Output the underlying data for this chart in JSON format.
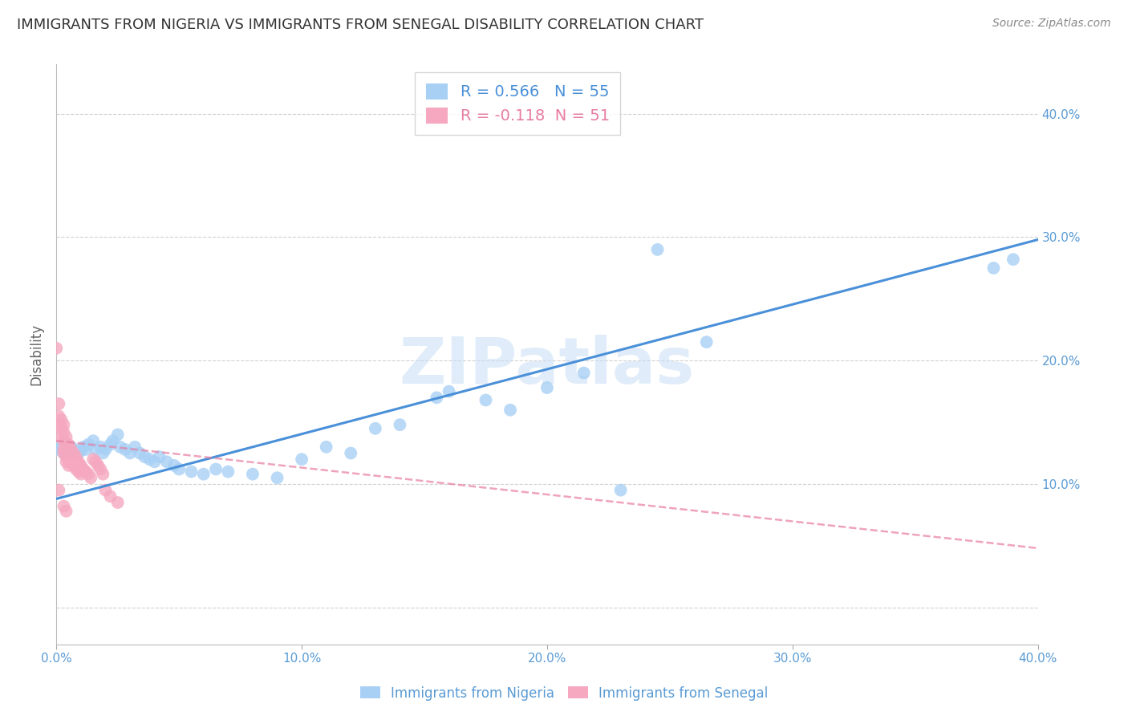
{
  "title": "IMMIGRANTS FROM NIGERIA VS IMMIGRANTS FROM SENEGAL DISABILITY CORRELATION CHART",
  "source": "Source: ZipAtlas.com",
  "ylabel": "Disability",
  "xlim": [
    0.0,
    0.4
  ],
  "ylim": [
    -0.03,
    0.44
  ],
  "yticks": [
    0.0,
    0.1,
    0.2,
    0.3,
    0.4
  ],
  "ytick_labels": [
    "",
    "10.0%",
    "20.0%",
    "30.0%",
    "40.0%"
  ],
  "xticks": [
    0.0,
    0.1,
    0.2,
    0.3,
    0.4
  ],
  "xtick_labels": [
    "0.0%",
    "10.0%",
    "20.0%",
    "30.0%",
    "40.0%"
  ],
  "nigeria_R": 0.566,
  "nigeria_N": 55,
  "senegal_R": -0.118,
  "senegal_N": 51,
  "nigeria_color": "#A8D0F5",
  "senegal_color": "#F5A8C0",
  "nigeria_line_color": "#4A90D9",
  "senegal_line_color": "#E87DA0",
  "watermark": "ZIPatlas",
  "background_color": "#ffffff",
  "title_fontsize": 13,
  "nigeria_line": [
    0.0,
    0.088,
    0.4,
    0.298
  ],
  "senegal_line": [
    0.0,
    0.135,
    0.4,
    0.048
  ],
  "nigeria_points": [
    [
      0.001,
      0.128
    ],
    [
      0.002,
      0.13
    ],
    [
      0.003,
      0.125
    ],
    [
      0.004,
      0.132
    ],
    [
      0.005,
      0.127
    ],
    [
      0.006,
      0.13
    ],
    [
      0.007,
      0.128
    ],
    [
      0.008,
      0.126
    ],
    [
      0.009,
      0.125
    ],
    [
      0.01,
      0.127
    ],
    [
      0.011,
      0.13
    ],
    [
      0.012,
      0.128
    ],
    [
      0.013,
      0.132
    ],
    [
      0.015,
      0.135
    ],
    [
      0.016,
      0.128
    ],
    [
      0.018,
      0.13
    ],
    [
      0.019,
      0.125
    ],
    [
      0.02,
      0.128
    ],
    [
      0.022,
      0.132
    ],
    [
      0.023,
      0.135
    ],
    [
      0.025,
      0.14
    ],
    [
      0.026,
      0.13
    ],
    [
      0.028,
      0.128
    ],
    [
      0.03,
      0.125
    ],
    [
      0.032,
      0.13
    ],
    [
      0.034,
      0.125
    ],
    [
      0.036,
      0.122
    ],
    [
      0.038,
      0.12
    ],
    [
      0.04,
      0.118
    ],
    [
      0.042,
      0.122
    ],
    [
      0.045,
      0.118
    ],
    [
      0.048,
      0.115
    ],
    [
      0.05,
      0.112
    ],
    [
      0.055,
      0.11
    ],
    [
      0.06,
      0.108
    ],
    [
      0.065,
      0.112
    ],
    [
      0.07,
      0.11
    ],
    [
      0.08,
      0.108
    ],
    [
      0.09,
      0.105
    ],
    [
      0.1,
      0.12
    ],
    [
      0.11,
      0.13
    ],
    [
      0.12,
      0.125
    ],
    [
      0.13,
      0.145
    ],
    [
      0.14,
      0.148
    ],
    [
      0.155,
      0.17
    ],
    [
      0.16,
      0.175
    ],
    [
      0.175,
      0.168
    ],
    [
      0.185,
      0.16
    ],
    [
      0.2,
      0.178
    ],
    [
      0.215,
      0.19
    ],
    [
      0.23,
      0.095
    ],
    [
      0.245,
      0.29
    ],
    [
      0.265,
      0.215
    ],
    [
      0.382,
      0.275
    ],
    [
      0.39,
      0.282
    ]
  ],
  "senegal_points": [
    [
      0.0,
      0.21
    ],
    [
      0.001,
      0.165
    ],
    [
      0.001,
      0.155
    ],
    [
      0.001,
      0.148
    ],
    [
      0.002,
      0.152
    ],
    [
      0.002,
      0.145
    ],
    [
      0.002,
      0.138
    ],
    [
      0.003,
      0.148
    ],
    [
      0.003,
      0.142
    ],
    [
      0.003,
      0.135
    ],
    [
      0.003,
      0.128
    ],
    [
      0.003,
      0.125
    ],
    [
      0.004,
      0.138
    ],
    [
      0.004,
      0.132
    ],
    [
      0.004,
      0.128
    ],
    [
      0.004,
      0.122
    ],
    [
      0.004,
      0.118
    ],
    [
      0.005,
      0.132
    ],
    [
      0.005,
      0.125
    ],
    [
      0.005,
      0.12
    ],
    [
      0.005,
      0.115
    ],
    [
      0.006,
      0.128
    ],
    [
      0.006,
      0.122
    ],
    [
      0.006,
      0.118
    ],
    [
      0.007,
      0.125
    ],
    [
      0.007,
      0.12
    ],
    [
      0.007,
      0.115
    ],
    [
      0.008,
      0.122
    ],
    [
      0.008,
      0.118
    ],
    [
      0.008,
      0.112
    ],
    [
      0.009,
      0.118
    ],
    [
      0.009,
      0.115
    ],
    [
      0.009,
      0.11
    ],
    [
      0.01,
      0.115
    ],
    [
      0.01,
      0.112
    ],
    [
      0.01,
      0.108
    ],
    [
      0.011,
      0.112
    ],
    [
      0.012,
      0.11
    ],
    [
      0.013,
      0.108
    ],
    [
      0.014,
      0.105
    ],
    [
      0.015,
      0.12
    ],
    [
      0.016,
      0.118
    ],
    [
      0.017,
      0.115
    ],
    [
      0.018,
      0.112
    ],
    [
      0.019,
      0.108
    ],
    [
      0.02,
      0.095
    ],
    [
      0.022,
      0.09
    ],
    [
      0.025,
      0.085
    ],
    [
      0.003,
      0.082
    ],
    [
      0.004,
      0.078
    ],
    [
      0.001,
      0.095
    ]
  ]
}
